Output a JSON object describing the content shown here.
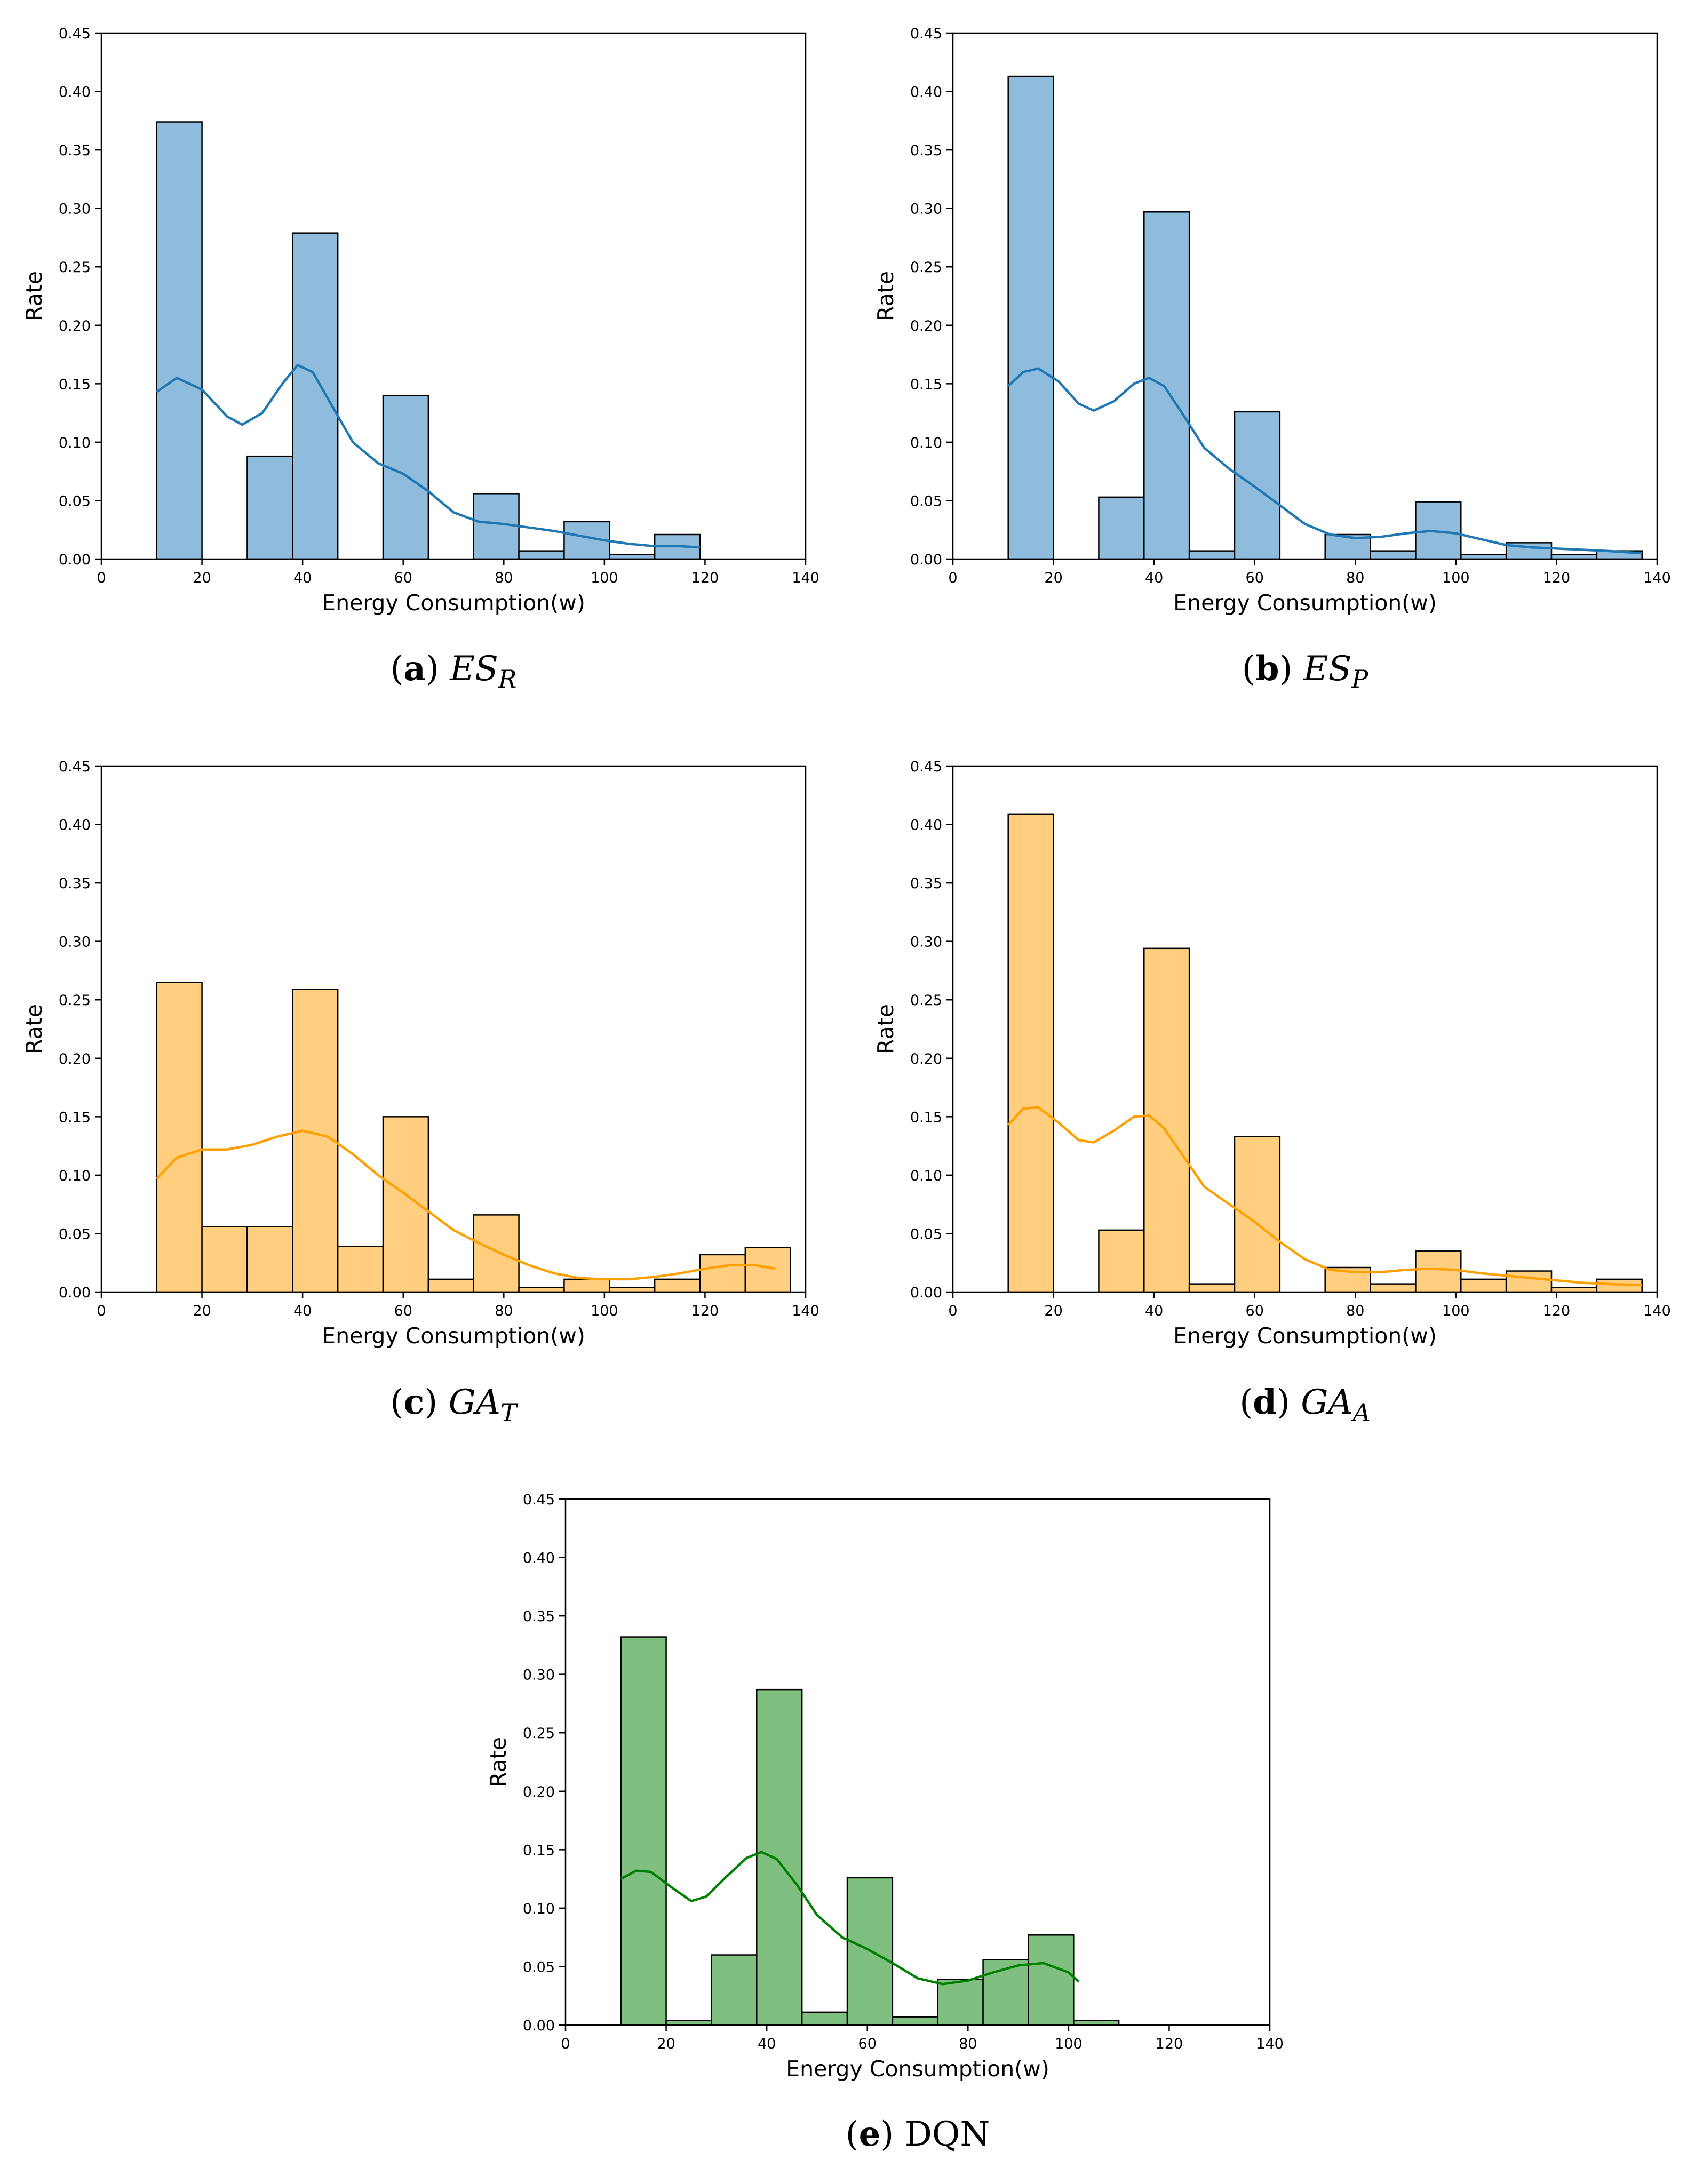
{
  "chart_data": [
    {
      "id": "a",
      "type": "histogram",
      "caption": {
        "letter": "a",
        "name": "ES",
        "sub": "R"
      },
      "xlabel": "Energy Consumption(w)",
      "ylabel": "Rate",
      "xlim": [
        0,
        140
      ],
      "ylim": [
        0,
        0.45
      ],
      "xticks": [
        0,
        20,
        40,
        60,
        80,
        100,
        120,
        140
      ],
      "yticks": [
        0.0,
        0.05,
        0.1,
        0.15,
        0.2,
        0.25,
        0.3,
        0.35,
        0.4,
        0.45
      ],
      "bar_color": "#8fbbdc",
      "line_color": "#1f77b4",
      "bins": [
        [
          11,
          20,
          0.374
        ],
        [
          20,
          29,
          0.0
        ],
        [
          29,
          38,
          0.088
        ],
        [
          38,
          47,
          0.279
        ],
        [
          47,
          56,
          0.0
        ],
        [
          56,
          65,
          0.14
        ],
        [
          65,
          74,
          0.0
        ],
        [
          74,
          83,
          0.056
        ],
        [
          83,
          92,
          0.007
        ],
        [
          92,
          101,
          0.032
        ],
        [
          101,
          110,
          0.004
        ],
        [
          110,
          119,
          0.021
        ]
      ],
      "kde": [
        [
          11,
          0.143
        ],
        [
          15,
          0.155
        ],
        [
          20,
          0.145
        ],
        [
          25,
          0.122
        ],
        [
          28,
          0.115
        ],
        [
          32,
          0.125
        ],
        [
          36,
          0.15
        ],
        [
          39,
          0.166
        ],
        [
          42,
          0.16
        ],
        [
          46,
          0.13
        ],
        [
          50,
          0.1
        ],
        [
          55,
          0.082
        ],
        [
          60,
          0.073
        ],
        [
          65,
          0.058
        ],
        [
          70,
          0.04
        ],
        [
          75,
          0.032
        ],
        [
          80,
          0.03
        ],
        [
          85,
          0.027
        ],
        [
          90,
          0.024
        ],
        [
          95,
          0.02
        ],
        [
          100,
          0.016
        ],
        [
          105,
          0.013
        ],
        [
          110,
          0.011
        ],
        [
          115,
          0.011
        ],
        [
          119,
          0.01
        ]
      ]
    },
    {
      "id": "b",
      "type": "histogram",
      "caption": {
        "letter": "b",
        "name": "ES",
        "sub": "P"
      },
      "xlabel": "Energy Consumption(w)",
      "ylabel": "Rate",
      "xlim": [
        0,
        140
      ],
      "ylim": [
        0,
        0.45
      ],
      "xticks": [
        0,
        20,
        40,
        60,
        80,
        100,
        120,
        140
      ],
      "yticks": [
        0.0,
        0.05,
        0.1,
        0.15,
        0.2,
        0.25,
        0.3,
        0.35,
        0.4,
        0.45
      ],
      "bar_color": "#8fbbdc",
      "line_color": "#1f77b4",
      "bins": [
        [
          11,
          20,
          0.413
        ],
        [
          20,
          29,
          0.0
        ],
        [
          29,
          38,
          0.053
        ],
        [
          38,
          47,
          0.297
        ],
        [
          47,
          56,
          0.007
        ],
        [
          56,
          65,
          0.126
        ],
        [
          65,
          74,
          0.0
        ],
        [
          74,
          83,
          0.021
        ],
        [
          83,
          92,
          0.007
        ],
        [
          92,
          101,
          0.049
        ],
        [
          101,
          110,
          0.004
        ],
        [
          110,
          119,
          0.014
        ],
        [
          119,
          128,
          0.004
        ],
        [
          128,
          137,
          0.007
        ]
      ],
      "kde": [
        [
          11,
          0.148
        ],
        [
          14,
          0.16
        ],
        [
          17,
          0.163
        ],
        [
          21,
          0.152
        ],
        [
          25,
          0.133
        ],
        [
          28,
          0.127
        ],
        [
          32,
          0.135
        ],
        [
          36,
          0.15
        ],
        [
          39,
          0.155
        ],
        [
          42,
          0.148
        ],
        [
          46,
          0.122
        ],
        [
          50,
          0.095
        ],
        [
          55,
          0.077
        ],
        [
          60,
          0.062
        ],
        [
          65,
          0.046
        ],
        [
          70,
          0.03
        ],
        [
          75,
          0.021
        ],
        [
          80,
          0.018
        ],
        [
          85,
          0.019
        ],
        [
          90,
          0.022
        ],
        [
          95,
          0.024
        ],
        [
          100,
          0.022
        ],
        [
          105,
          0.017
        ],
        [
          110,
          0.012
        ],
        [
          115,
          0.01
        ],
        [
          120,
          0.009
        ],
        [
          125,
          0.008
        ],
        [
          130,
          0.007
        ],
        [
          137,
          0.005
        ]
      ]
    },
    {
      "id": "c",
      "type": "histogram",
      "caption": {
        "letter": "c",
        "name": "GA",
        "sub": "T"
      },
      "xlabel": "Energy Consumption(w)",
      "ylabel": "Rate",
      "xlim": [
        0,
        140
      ],
      "ylim": [
        0,
        0.45
      ],
      "xticks": [
        0,
        20,
        40,
        60,
        80,
        100,
        120,
        140
      ],
      "yticks": [
        0.0,
        0.05,
        0.1,
        0.15,
        0.2,
        0.25,
        0.3,
        0.35,
        0.4,
        0.45
      ],
      "bar_color": "#ffcf7f",
      "line_color": "#ffa000",
      "bins": [
        [
          11,
          20,
          0.265
        ],
        [
          20,
          29,
          0.056
        ],
        [
          29,
          38,
          0.056
        ],
        [
          38,
          47,
          0.259
        ],
        [
          47,
          56,
          0.039
        ],
        [
          56,
          65,
          0.15
        ],
        [
          65,
          74,
          0.011
        ],
        [
          74,
          83,
          0.066
        ],
        [
          83,
          92,
          0.004
        ],
        [
          92,
          101,
          0.011
        ],
        [
          101,
          110,
          0.004
        ],
        [
          110,
          119,
          0.011
        ],
        [
          119,
          128,
          0.032
        ],
        [
          128,
          137,
          0.038
        ]
      ],
      "kde": [
        [
          11,
          0.097
        ],
        [
          15,
          0.115
        ],
        [
          20,
          0.122
        ],
        [
          25,
          0.122
        ],
        [
          30,
          0.126
        ],
        [
          35,
          0.133
        ],
        [
          40,
          0.138
        ],
        [
          45,
          0.133
        ],
        [
          50,
          0.118
        ],
        [
          55,
          0.1
        ],
        [
          60,
          0.085
        ],
        [
          65,
          0.069
        ],
        [
          70,
          0.053
        ],
        [
          75,
          0.042
        ],
        [
          80,
          0.032
        ],
        [
          85,
          0.023
        ],
        [
          90,
          0.016
        ],
        [
          95,
          0.012
        ],
        [
          100,
          0.011
        ],
        [
          105,
          0.011
        ],
        [
          110,
          0.013
        ],
        [
          115,
          0.016
        ],
        [
          120,
          0.02
        ],
        [
          125,
          0.023
        ],
        [
          130,
          0.023
        ],
        [
          134,
          0.02
        ]
      ]
    },
    {
      "id": "d",
      "type": "histogram",
      "caption": {
        "letter": "d",
        "name": "GA",
        "sub": "A"
      },
      "xlabel": "Energy Consumption(w)",
      "ylabel": "Rate",
      "xlim": [
        0,
        140
      ],
      "ylim": [
        0,
        0.45
      ],
      "xticks": [
        0,
        20,
        40,
        60,
        80,
        100,
        120,
        140
      ],
      "yticks": [
        0.0,
        0.05,
        0.1,
        0.15,
        0.2,
        0.25,
        0.3,
        0.35,
        0.4,
        0.45
      ],
      "bar_color": "#ffcf7f",
      "line_color": "#ffa000",
      "bins": [
        [
          11,
          20,
          0.409
        ],
        [
          20,
          29,
          0.0
        ],
        [
          29,
          38,
          0.053
        ],
        [
          38,
          47,
          0.294
        ],
        [
          47,
          56,
          0.007
        ],
        [
          56,
          65,
          0.133
        ],
        [
          65,
          74,
          0.0
        ],
        [
          74,
          83,
          0.021
        ],
        [
          83,
          92,
          0.007
        ],
        [
          92,
          101,
          0.035
        ],
        [
          101,
          110,
          0.011
        ],
        [
          110,
          119,
          0.018
        ],
        [
          119,
          128,
          0.004
        ],
        [
          128,
          137,
          0.011
        ]
      ],
      "kde": [
        [
          11,
          0.143
        ],
        [
          14,
          0.157
        ],
        [
          17,
          0.158
        ],
        [
          21,
          0.145
        ],
        [
          25,
          0.13
        ],
        [
          28,
          0.128
        ],
        [
          32,
          0.138
        ],
        [
          36,
          0.15
        ],
        [
          39,
          0.151
        ],
        [
          42,
          0.14
        ],
        [
          46,
          0.115
        ],
        [
          50,
          0.09
        ],
        [
          55,
          0.075
        ],
        [
          60,
          0.06
        ],
        [
          65,
          0.043
        ],
        [
          70,
          0.028
        ],
        [
          75,
          0.019
        ],
        [
          80,
          0.017
        ],
        [
          85,
          0.017
        ],
        [
          90,
          0.019
        ],
        [
          95,
          0.02
        ],
        [
          100,
          0.019
        ],
        [
          105,
          0.016
        ],
        [
          110,
          0.014
        ],
        [
          115,
          0.012
        ],
        [
          120,
          0.01
        ],
        [
          125,
          0.008
        ],
        [
          130,
          0.007
        ],
        [
          137,
          0.006
        ]
      ]
    },
    {
      "id": "e",
      "type": "histogram",
      "caption": {
        "letter": "e",
        "name": "DQN",
        "sub": ""
      },
      "xlabel": "Energy Consumption(w)",
      "ylabel": "Rate",
      "xlim": [
        0,
        140
      ],
      "ylim": [
        0,
        0.45
      ],
      "xticks": [
        0,
        20,
        40,
        60,
        80,
        100,
        120,
        140
      ],
      "yticks": [
        0.0,
        0.05,
        0.1,
        0.15,
        0.2,
        0.25,
        0.3,
        0.35,
        0.4,
        0.45
      ],
      "bar_color": "#7fbf7f",
      "line_color": "#008000",
      "bins": [
        [
          11,
          20,
          0.332
        ],
        [
          20,
          29,
          0.004
        ],
        [
          29,
          38,
          0.06
        ],
        [
          38,
          47,
          0.287
        ],
        [
          47,
          56,
          0.011
        ],
        [
          56,
          65,
          0.126
        ],
        [
          65,
          74,
          0.007
        ],
        [
          74,
          83,
          0.039
        ],
        [
          83,
          92,
          0.056
        ],
        [
          92,
          101,
          0.077
        ],
        [
          101,
          110,
          0.004
        ]
      ],
      "kde": [
        [
          11,
          0.125
        ],
        [
          14,
          0.132
        ],
        [
          17,
          0.131
        ],
        [
          21,
          0.118
        ],
        [
          25,
          0.106
        ],
        [
          28,
          0.11
        ],
        [
          32,
          0.127
        ],
        [
          36,
          0.143
        ],
        [
          39,
          0.148
        ],
        [
          42,
          0.142
        ],
        [
          46,
          0.12
        ],
        [
          50,
          0.094
        ],
        [
          55,
          0.075
        ],
        [
          60,
          0.065
        ],
        [
          65,
          0.053
        ],
        [
          70,
          0.04
        ],
        [
          75,
          0.035
        ],
        [
          80,
          0.038
        ],
        [
          85,
          0.045
        ],
        [
          90,
          0.051
        ],
        [
          95,
          0.053
        ],
        [
          100,
          0.045
        ],
        [
          102,
          0.037
        ]
      ]
    }
  ]
}
